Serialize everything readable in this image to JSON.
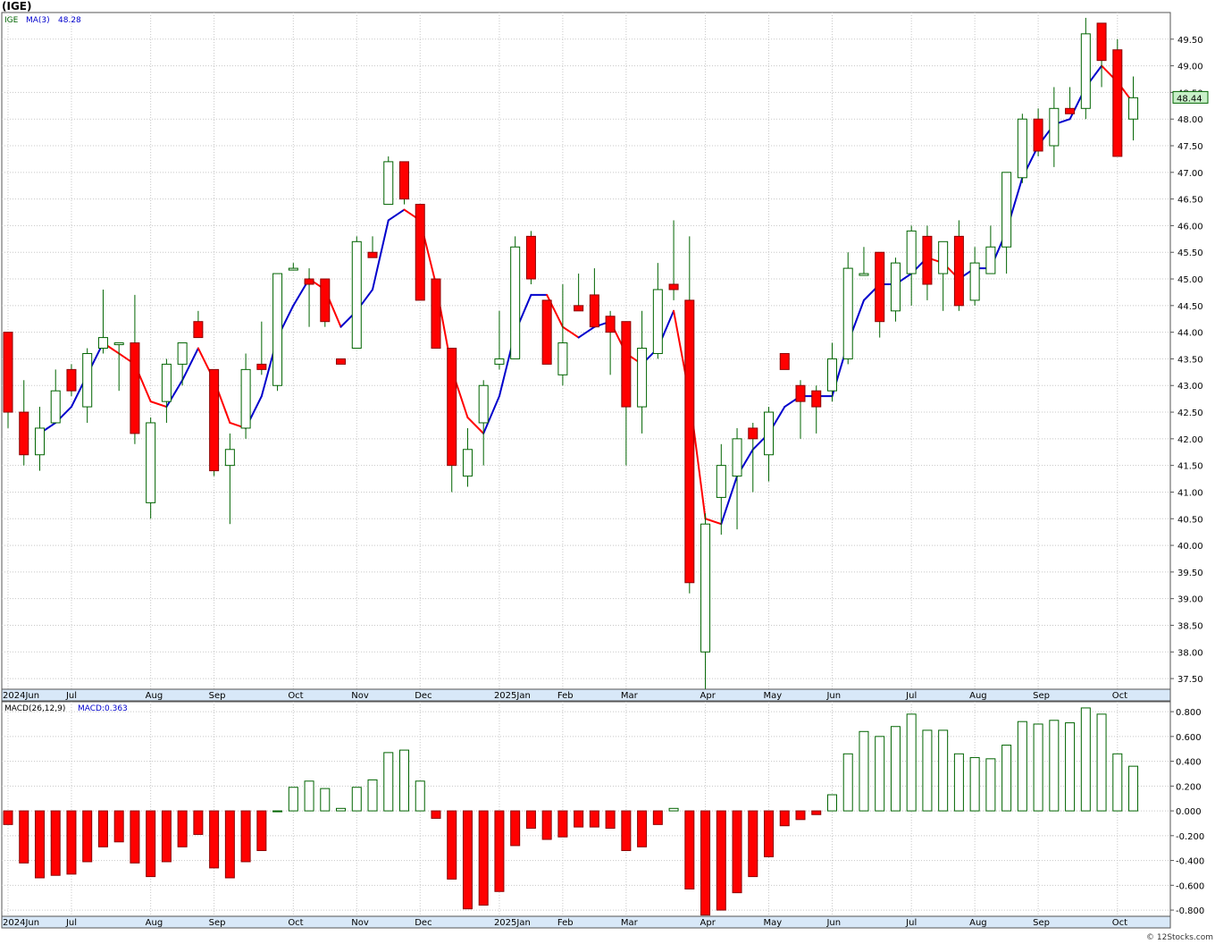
{
  "page": {
    "title": "(IGE)",
    "watermark": "© 12Stocks.com"
  },
  "price_panel": {
    "legend_symbol": "IGE",
    "legend_ma_label": "MA(3)",
    "legend_ma_value": "48.28",
    "last_price_label": "48.44"
  },
  "macd_panel": {
    "legend_label": "MACD(26,12,9)",
    "legend_value": "MACD:0.363"
  },
  "chart_data": [
    {
      "type": "candlestick",
      "title": "(IGE)",
      "interval": "weekly",
      "ylim": [
        37.3,
        50.0
      ],
      "yticks": [
        37.5,
        38.0,
        38.5,
        39.0,
        39.5,
        40.0,
        40.5,
        41.0,
        41.5,
        42.0,
        42.5,
        43.0,
        43.5,
        44.0,
        44.5,
        45.0,
        45.5,
        46.0,
        46.5,
        47.0,
        47.5,
        48.0,
        48.5,
        49.0,
        49.5
      ],
      "x_labels": [
        {
          "label": "2024Jun",
          "index": 0
        },
        {
          "label": "Jul",
          "index": 4
        },
        {
          "label": "Aug",
          "index": 9
        },
        {
          "label": "Sep",
          "index": 13
        },
        {
          "label": "Oct",
          "index": 18
        },
        {
          "label": "Nov",
          "index": 22
        },
        {
          "label": "Dec",
          "index": 26
        },
        {
          "label": "2025Jan",
          "index": 31
        },
        {
          "label": "Feb",
          "index": 35
        },
        {
          "label": "Mar",
          "index": 39
        },
        {
          "label": "Apr",
          "index": 44
        },
        {
          "label": "May",
          "index": 48
        },
        {
          "label": "Jun",
          "index": 52
        },
        {
          "label": "Jul",
          "index": 57
        },
        {
          "label": "Aug",
          "index": 61
        },
        {
          "label": "Sep",
          "index": 65
        },
        {
          "label": "Oct",
          "index": 70
        }
      ],
      "colors": {
        "up": "#ffffff",
        "up_border": "#006400",
        "down": "#ff0000",
        "down_border": "#8b0000",
        "ma_up": "#0000cc",
        "ma_down": "#ff0000",
        "wick": "#006400"
      },
      "candles": [
        {
          "o": 44.0,
          "h": 44.0,
          "l": 42.2,
          "c": 42.5
        },
        {
          "o": 42.5,
          "h": 43.1,
          "l": 41.5,
          "c": 41.7
        },
        {
          "o": 41.7,
          "h": 42.6,
          "l": 41.4,
          "c": 42.2
        },
        {
          "o": 42.3,
          "h": 43.3,
          "l": 42.3,
          "c": 42.9
        },
        {
          "o": 43.3,
          "h": 43.4,
          "l": 42.8,
          "c": 42.9
        },
        {
          "o": 42.6,
          "h": 43.7,
          "l": 42.3,
          "c": 43.6
        },
        {
          "o": 43.7,
          "h": 44.8,
          "l": 43.6,
          "c": 43.9
        },
        {
          "o": 43.8,
          "h": 43.8,
          "l": 42.9,
          "c": 43.8
        },
        {
          "o": 43.8,
          "h": 44.7,
          "l": 41.9,
          "c": 42.1
        },
        {
          "o": 40.8,
          "h": 42.4,
          "l": 40.5,
          "c": 42.3
        },
        {
          "o": 42.7,
          "h": 43.5,
          "l": 42.3,
          "c": 43.4
        },
        {
          "o": 43.4,
          "h": 43.8,
          "l": 43.0,
          "c": 43.8
        },
        {
          "o": 44.2,
          "h": 44.4,
          "l": 43.9,
          "c": 43.9
        },
        {
          "o": 43.3,
          "h": 43.3,
          "l": 41.3,
          "c": 41.4
        },
        {
          "o": 41.5,
          "h": 42.1,
          "l": 40.4,
          "c": 41.8
        },
        {
          "o": 42.2,
          "h": 43.6,
          "l": 42.0,
          "c": 43.3
        },
        {
          "o": 43.4,
          "h": 44.2,
          "l": 43.2,
          "c": 43.3
        },
        {
          "o": 43.0,
          "h": 45.1,
          "l": 42.9,
          "c": 45.1
        },
        {
          "o": 45.2,
          "h": 45.3,
          "l": 45.2,
          "c": 45.2
        },
        {
          "o": 45.0,
          "h": 45.2,
          "l": 44.1,
          "c": 44.9
        },
        {
          "o": 45.0,
          "h": 45.0,
          "l": 44.1,
          "c": 44.2
        },
        {
          "o": 43.5,
          "h": 43.5,
          "l": 43.4,
          "c": 43.4
        },
        {
          "o": 43.7,
          "h": 45.8,
          "l": 43.7,
          "c": 45.7
        },
        {
          "o": 45.5,
          "h": 45.8,
          "l": 45.4,
          "c": 45.4
        },
        {
          "o": 46.4,
          "h": 47.3,
          "l": 46.4,
          "c": 47.2
        },
        {
          "o": 47.2,
          "h": 47.2,
          "l": 46.4,
          "c": 46.5
        },
        {
          "o": 46.4,
          "h": 46.4,
          "l": 44.6,
          "c": 44.6
        },
        {
          "o": 45.0,
          "h": 45.0,
          "l": 43.7,
          "c": 43.7
        },
        {
          "o": 43.7,
          "h": 43.7,
          "l": 41.0,
          "c": 41.5
        },
        {
          "o": 41.3,
          "h": 42.2,
          "l": 41.1,
          "c": 41.8
        },
        {
          "o": 42.3,
          "h": 43.1,
          "l": 41.5,
          "c": 43.0
        },
        {
          "o": 43.4,
          "h": 44.4,
          "l": 43.3,
          "c": 43.5
        },
        {
          "o": 43.5,
          "h": 45.8,
          "l": 43.5,
          "c": 45.6
        },
        {
          "o": 45.8,
          "h": 45.9,
          "l": 44.9,
          "c": 45.0
        },
        {
          "o": 44.6,
          "h": 44.6,
          "l": 43.5,
          "c": 43.4
        },
        {
          "o": 43.2,
          "h": 44.9,
          "l": 43.0,
          "c": 43.8
        },
        {
          "o": 44.5,
          "h": 45.1,
          "l": 44.5,
          "c": 44.4
        },
        {
          "o": 44.7,
          "h": 45.2,
          "l": 44.1,
          "c": 44.1
        },
        {
          "o": 44.3,
          "h": 44.4,
          "l": 43.2,
          "c": 44.0
        },
        {
          "o": 44.2,
          "h": 44.2,
          "l": 41.5,
          "c": 42.6
        },
        {
          "o": 42.6,
          "h": 44.4,
          "l": 42.1,
          "c": 43.7
        },
        {
          "o": 43.6,
          "h": 45.3,
          "l": 43.5,
          "c": 44.8
        },
        {
          "o": 44.9,
          "h": 46.1,
          "l": 44.6,
          "c": 44.8
        },
        {
          "o": 44.6,
          "h": 45.8,
          "l": 39.1,
          "c": 39.3
        },
        {
          "o": 38.0,
          "h": 40.6,
          "l": 37.3,
          "c": 40.4
        },
        {
          "o": 40.9,
          "h": 41.9,
          "l": 40.2,
          "c": 41.5
        },
        {
          "o": 41.3,
          "h": 42.2,
          "l": 40.3,
          "c": 42.0
        },
        {
          "o": 42.2,
          "h": 42.3,
          "l": 41.0,
          "c": 42.0
        },
        {
          "o": 41.7,
          "h": 42.6,
          "l": 41.2,
          "c": 42.5
        },
        {
          "o": 43.6,
          "h": 43.6,
          "l": 43.3,
          "c": 43.3
        },
        {
          "o": 43.0,
          "h": 43.1,
          "l": 42.0,
          "c": 42.7
        },
        {
          "o": 42.9,
          "h": 43.0,
          "l": 42.1,
          "c": 42.6
        },
        {
          "o": 42.9,
          "h": 43.8,
          "l": 42.7,
          "c": 43.5
        },
        {
          "o": 43.5,
          "h": 45.5,
          "l": 43.4,
          "c": 45.2
        },
        {
          "o": 45.1,
          "h": 45.6,
          "l": 45.1,
          "c": 45.1
        },
        {
          "o": 45.5,
          "h": 45.5,
          "l": 43.9,
          "c": 44.2
        },
        {
          "o": 44.4,
          "h": 45.4,
          "l": 44.2,
          "c": 45.3
        },
        {
          "o": 45.1,
          "h": 46.0,
          "l": 44.5,
          "c": 45.9
        },
        {
          "o": 45.8,
          "h": 46.0,
          "l": 44.6,
          "c": 44.9
        },
        {
          "o": 45.1,
          "h": 45.7,
          "l": 44.4,
          "c": 45.7
        },
        {
          "o": 45.8,
          "h": 46.1,
          "l": 44.4,
          "c": 44.5
        },
        {
          "o": 44.6,
          "h": 45.6,
          "l": 44.5,
          "c": 45.3
        },
        {
          "o": 45.1,
          "h": 46.0,
          "l": 45.1,
          "c": 45.6
        },
        {
          "o": 45.6,
          "h": 47.0,
          "l": 45.1,
          "c": 47.0
        },
        {
          "o": 46.9,
          "h": 48.1,
          "l": 46.8,
          "c": 48.0
        },
        {
          "o": 48.0,
          "h": 48.2,
          "l": 47.3,
          "c": 47.4
        },
        {
          "o": 47.5,
          "h": 48.6,
          "l": 47.1,
          "c": 48.2
        },
        {
          "o": 48.2,
          "h": 48.6,
          "l": 48.1,
          "c": 48.1
        },
        {
          "o": 48.2,
          "h": 49.9,
          "l": 48.0,
          "c": 49.6
        },
        {
          "o": 49.8,
          "h": 49.8,
          "l": 48.6,
          "c": 49.1
        },
        {
          "o": 49.3,
          "h": 49.5,
          "l": 47.3,
          "c": 47.3
        },
        {
          "o": 48.0,
          "h": 48.8,
          "l": 47.6,
          "c": 48.4
        }
      ],
      "ma3": [
        null,
        null,
        42.1,
        42.3,
        42.6,
        43.2,
        43.8,
        43.6,
        43.4,
        42.7,
        42.6,
        43.1,
        43.7,
        43.1,
        42.3,
        42.2,
        42.8,
        43.9,
        44.5,
        45.0,
        44.8,
        44.1,
        44.4,
        44.8,
        46.1,
        46.3,
        46.1,
        44.9,
        43.3,
        42.4,
        42.1,
        42.8,
        44.0,
        44.7,
        44.7,
        44.1,
        43.9,
        44.1,
        44.2,
        43.6,
        43.4,
        43.7,
        44.4,
        42.8,
        40.5,
        40.4,
        41.3,
        41.8,
        42.1,
        42.6,
        42.8,
        42.8,
        42.8,
        43.8,
        44.6,
        44.9,
        44.9,
        45.1,
        45.4,
        45.3,
        45.0,
        45.2,
        45.2,
        45.9,
        46.9,
        47.5,
        47.9,
        48.0,
        48.6,
        49.0,
        48.7,
        48.3
      ]
    },
    {
      "type": "bar",
      "title": "MACD(26,12,9)",
      "ylim": [
        -0.85,
        0.88
      ],
      "yticks": [
        -0.8,
        -0.6,
        -0.4,
        -0.2,
        0.0,
        0.2,
        0.4,
        0.6,
        0.8
      ],
      "ytick_labels": [
        "-0.800",
        "-0.600",
        "-0.400",
        "-0.200",
        "0.000",
        "0.200",
        "0.400",
        "0.600",
        "0.800"
      ],
      "x_labels": [
        "2024Jun",
        "Jul",
        "Aug",
        "Sep",
        "Oct",
        "Nov",
        "Dec",
        "2025Jan",
        "Feb",
        "Mar",
        "Apr",
        "May",
        "Jun",
        "Jul",
        "Aug",
        "Sep",
        "Oct"
      ],
      "values": [
        -0.11,
        -0.42,
        -0.54,
        -0.52,
        -0.51,
        -0.41,
        -0.29,
        -0.25,
        -0.42,
        -0.53,
        -0.41,
        -0.29,
        -0.19,
        -0.46,
        -0.54,
        -0.41,
        -0.32,
        0.0,
        0.19,
        0.24,
        0.18,
        0.02,
        0.19,
        0.25,
        0.47,
        0.49,
        0.24,
        -0.06,
        -0.55,
        -0.79,
        -0.76,
        -0.65,
        -0.28,
        -0.14,
        -0.23,
        -0.21,
        -0.13,
        -0.13,
        -0.14,
        -0.32,
        -0.29,
        -0.11,
        0.02,
        -0.63,
        -0.84,
        -0.8,
        -0.66,
        -0.53,
        -0.37,
        -0.12,
        -0.07,
        -0.03,
        0.13,
        0.46,
        0.64,
        0.6,
        0.68,
        0.78,
        0.65,
        0.65,
        0.46,
        0.43,
        0.42,
        0.53,
        0.72,
        0.7,
        0.73,
        0.71,
        0.83,
        0.78,
        0.46,
        0.36
      ],
      "colors": {
        "positive": "#006400",
        "negative": "#ff0000",
        "negative_border": "#8b0000"
      }
    }
  ]
}
